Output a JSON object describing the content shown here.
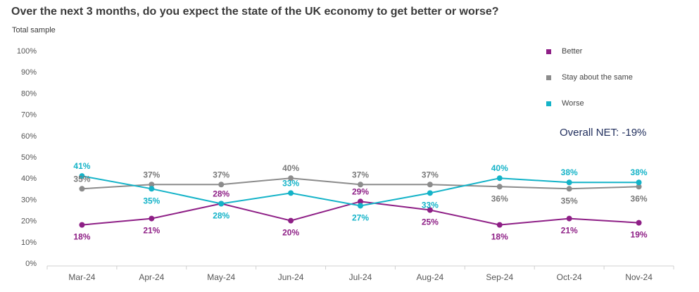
{
  "title": "Over the next 3 months, do you expect the state of the UK economy to get better or worse?",
  "subtitle": "Total sample",
  "net_label": "Overall NET: -19%",
  "chart_data": {
    "type": "line",
    "title": "Over the next 3 months, do you expect the state of the UK economy to get better or worse?",
    "subtitle": "Total sample",
    "categories": [
      "Mar-24",
      "Apr-24",
      "May-24",
      "Jun-24",
      "Jul-24",
      "Aug-24",
      "Sep-24",
      "Oct-24",
      "Nov-24"
    ],
    "ylim": [
      0,
      100
    ],
    "yticks": [
      "0%",
      "10%",
      "20%",
      "30%",
      "40%",
      "50%",
      "60%",
      "70%",
      "80%",
      "90%",
      "100%"
    ],
    "grid": false,
    "legend_position": "top-right",
    "series": [
      {
        "name": "Better",
        "color": "#8e1f86",
        "values": [
          18,
          21,
          28,
          20,
          29,
          25,
          18,
          21,
          19
        ]
      },
      {
        "name": "Stay about the same",
        "color": "#8c8c8c",
        "values": [
          35,
          37,
          37,
          40,
          37,
          37,
          36,
          35,
          36
        ]
      },
      {
        "name": "Worse",
        "color": "#14b3c8",
        "values": [
          41,
          35,
          28,
          33,
          27,
          33,
          40,
          38,
          38
        ]
      }
    ]
  }
}
